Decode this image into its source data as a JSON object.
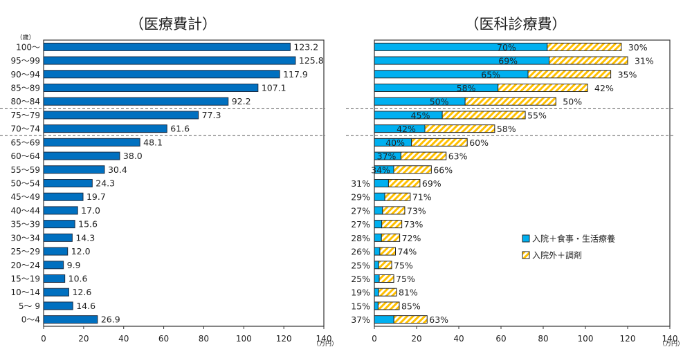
{
  "chart_data": [
    {
      "type": "bar",
      "orientation": "horizontal",
      "title": "（医療費計）",
      "ylabel": "（歳）",
      "xlabel": "（万円）",
      "xlim": [
        0,
        140
      ],
      "xticks": [
        "0",
        "20",
        "40",
        "60",
        "80",
        "100",
        "120",
        "140"
      ],
      "categories": [
        "100～",
        "95～99",
        "90～94",
        "85～89",
        "80～84",
        "75～79",
        "70～74",
        "65～69",
        "60～64",
        "55～59",
        "50～54",
        "45～49",
        "40～44",
        "35～39",
        "30～34",
        "25～29",
        "20～24",
        "15～19",
        "10～14",
        "5～ 9",
        "0～4"
      ],
      "values": [
        123.2,
        125.8,
        117.9,
        107.1,
        92.2,
        77.3,
        61.6,
        48.1,
        38.0,
        30.4,
        24.3,
        19.7,
        17.0,
        15.6,
        14.3,
        12.0,
        9.9,
        10.6,
        12.6,
        14.6,
        26.9
      ],
      "labels": [
        "123.2",
        "125.8",
        "117.9",
        "107.1",
        "92.2",
        "77.3",
        "61.6",
        "48.1",
        "38.0",
        "30.4",
        "24.3",
        "19.7",
        "17.0",
        "15.6",
        "14.3",
        "12.0",
        "9.9",
        "10.6",
        "12.6",
        "14.6",
        "26.9"
      ],
      "color": "#0070C0",
      "grid": false
    },
    {
      "type": "bar",
      "orientation": "horizontal",
      "stacked": true,
      "title": "（医科診療費）",
      "xlabel": "（万円）",
      "xlim": [
        0,
        140
      ],
      "xticks": [
        "0",
        "20",
        "40",
        "60",
        "80",
        "100",
        "120",
        "140"
      ],
      "categories": [
        "100～",
        "95～99",
        "90～94",
        "85～89",
        "80～84",
        "75～79",
        "70～74",
        "65～69",
        "60～64",
        "55～59",
        "50～54",
        "45～49",
        "40～44",
        "35～39",
        "30～34",
        "25～29",
        "20～24",
        "15～19",
        "10～14",
        "5～ 9",
        "0～4"
      ],
      "totals": [
        117,
        120,
        112,
        101,
        86,
        71.5,
        57,
        44,
        34,
        27,
        21.6,
        17,
        14.4,
        13,
        12,
        10,
        8.2,
        9.2,
        10.5,
        11.8,
        25
      ],
      "series": [
        {
          "name": "入院＋食事・生活療養",
          "color": "#00B0F0",
          "percent_labels": [
            "70%",
            "69%",
            "65%",
            "58%",
            "50%",
            "45%",
            "42%",
            "40%",
            "37%",
            "34%",
            "31%",
            "29%",
            "27%",
            "27%",
            "28%",
            "26%",
            "25%",
            "25%",
            "19%",
            "15%",
            "37%"
          ]
        },
        {
          "name": "入院外＋調剤",
          "color": "#FFC000",
          "pattern": "hatched",
          "percent_labels": [
            "30%",
            "31%",
            "35%",
            "42%",
            "50%",
            "55%",
            "58%",
            "60%",
            "63%",
            "66%",
            "69%",
            "71%",
            "73%",
            "73%",
            "72%",
            "74%",
            "75%",
            "75%",
            "81%",
            "85%",
            "63%"
          ]
        }
      ],
      "legend": "center-right",
      "grid": false
    }
  ]
}
